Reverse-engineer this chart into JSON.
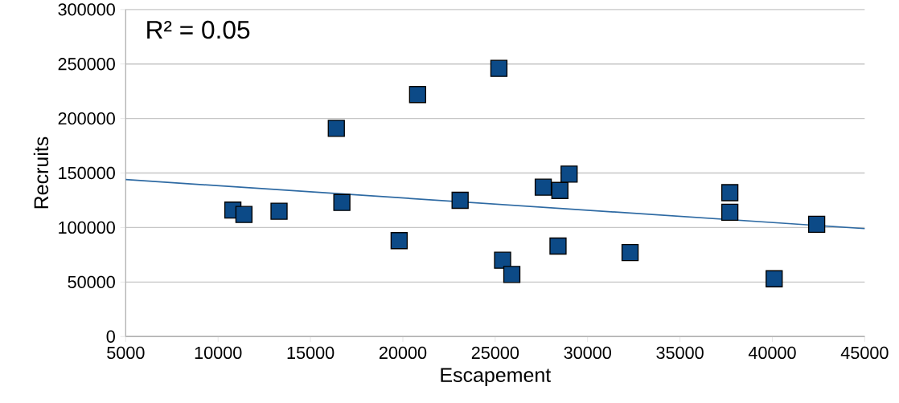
{
  "chart_data": {
    "type": "scatter",
    "xlabel": "Escapement",
    "ylabel": "Recruits",
    "annotations": [
      "R² = 0.05"
    ],
    "xlim": [
      5000,
      45000
    ],
    "xticks": [
      5000,
      10000,
      15000,
      20000,
      25000,
      30000,
      35000,
      40000,
      45000
    ],
    "ylim": [
      0,
      300000
    ],
    "yticks": [
      0,
      50000,
      100000,
      150000,
      200000,
      250000,
      300000
    ],
    "grid": "y",
    "marker": "square",
    "series": [
      {
        "color": "#0c4a87",
        "x": [
          10800,
          11400,
          13300,
          16400,
          16700,
          20800,
          19800,
          23100,
          25200,
          25400,
          25900,
          27600,
          28500,
          29000,
          28400,
          32300,
          37700,
          37700,
          40100,
          42400
        ],
        "values": [
          116000,
          112000,
          115000,
          191000,
          123000,
          222000,
          88000,
          125000,
          246000,
          70000,
          57000,
          137000,
          134000,
          149000,
          83000,
          77000,
          132000,
          114000,
          53000,
          103000
        ]
      },
      {
        "type": "line",
        "color": "#2e6aa3",
        "marker": "none",
        "x": [
          5000,
          45000
        ],
        "values": [
          144000,
          99000
        ]
      }
    ]
  }
}
